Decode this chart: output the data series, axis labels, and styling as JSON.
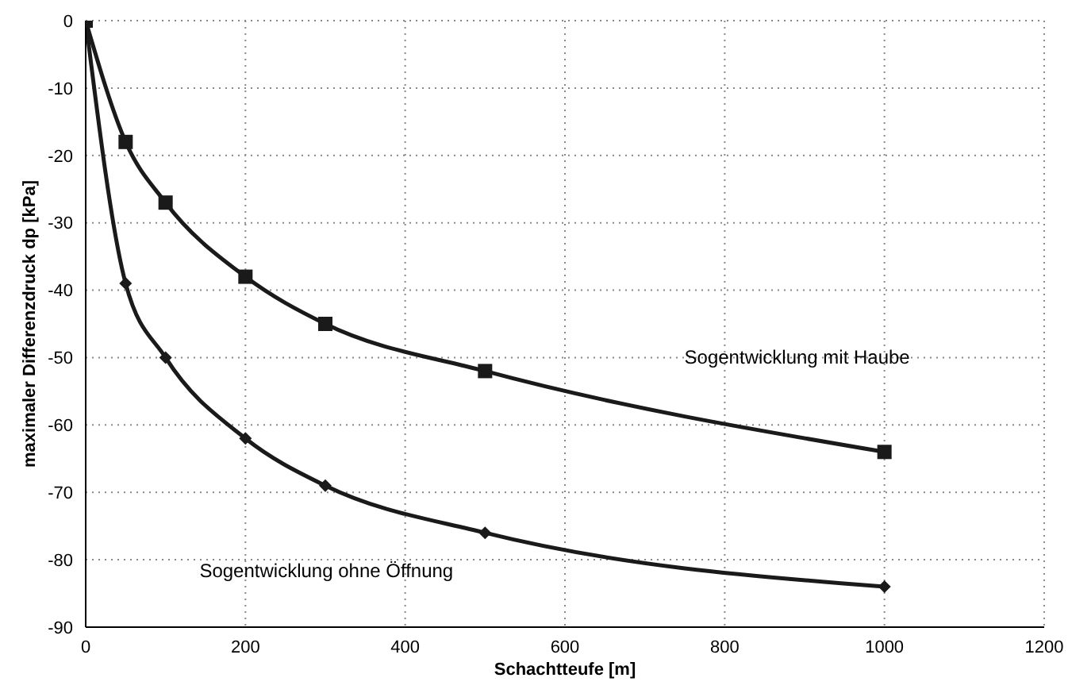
{
  "chart_data": {
    "type": "line",
    "xlabel": "Schachtteufe [m]",
    "ylabel": "maximaler Differenzdruck dp [kPa]",
    "x": [
      0,
      50,
      100,
      200,
      300,
      500,
      1000
    ],
    "series": [
      {
        "name": "Sogentwicklung mit Haube",
        "color": "#1a1a1a",
        "marker": "square",
        "values": [
          0,
          -18,
          -27,
          -38,
          -45,
          -52,
          -64
        ]
      },
      {
        "name": "Sogentwicklung ohne Öffnung",
        "color": "#1a1a1a",
        "marker": "diamond",
        "values": [
          0,
          -39,
          -50,
          -62,
          -69,
          -76,
          -84
        ]
      }
    ],
    "xlim": [
      0,
      1200
    ],
    "xticks": [
      0,
      200,
      400,
      600,
      800,
      1000,
      1200
    ],
    "ylim": [
      -90,
      0
    ],
    "yticks": [
      -90,
      -80,
      -70,
      -60,
      -50,
      -40,
      -30,
      -20,
      -10,
      0
    ],
    "grid": true,
    "legend": false
  }
}
